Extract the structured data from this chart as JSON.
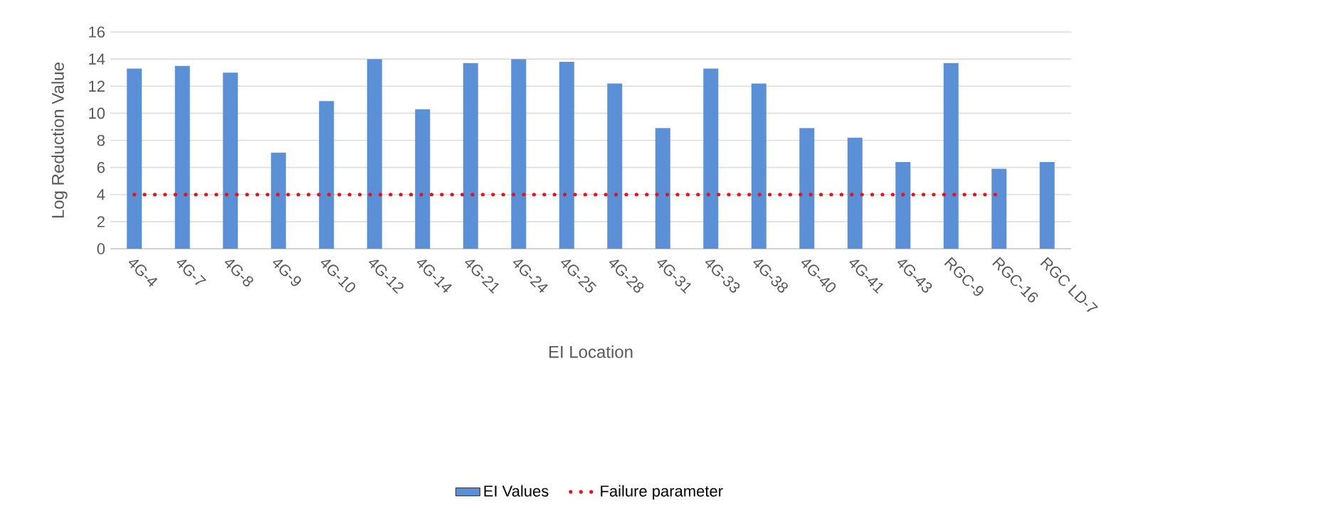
{
  "chart_data": {
    "type": "bar",
    "xlabel": "EI Location",
    "ylabel": "Log Reduction Value",
    "categories": [
      "4G-4",
      "4G-7",
      "4G-8",
      "4G-9",
      "4G-10",
      "4G-12",
      "4G-14",
      "4G-21",
      "4G-24",
      "4G-25",
      "4G-28",
      "4G-31",
      "4G-33",
      "4G-38",
      "4G-40",
      "4G-41",
      "4G-43",
      "RGC-9",
      "RGC-16",
      "RGC LD-7"
    ],
    "series": [
      {
        "name": "EI Values",
        "color": "#5b8fd6",
        "values": [
          13.3,
          13.5,
          13.0,
          7.1,
          10.9,
          14.0,
          10.3,
          13.7,
          14.0,
          13.8,
          12.2,
          8.9,
          13.3,
          12.2,
          8.9,
          8.2,
          6.4,
          13.7,
          5.9,
          6.4
        ]
      },
      {
        "name": "Failure parameter",
        "type": "line",
        "color": "#e8141c",
        "line_style": "dotted",
        "marker": "none",
        "values": [
          4,
          4,
          4,
          4,
          4,
          4,
          4,
          4,
          4,
          4,
          4,
          4,
          4,
          4,
          4,
          4,
          4,
          4,
          4,
          null
        ]
      }
    ],
    "ylim": [
      0,
      16
    ],
    "yticks": [
      0,
      2,
      4,
      6,
      8,
      10,
      12,
      14,
      16
    ],
    "grid": "y",
    "legend": "bottom"
  }
}
